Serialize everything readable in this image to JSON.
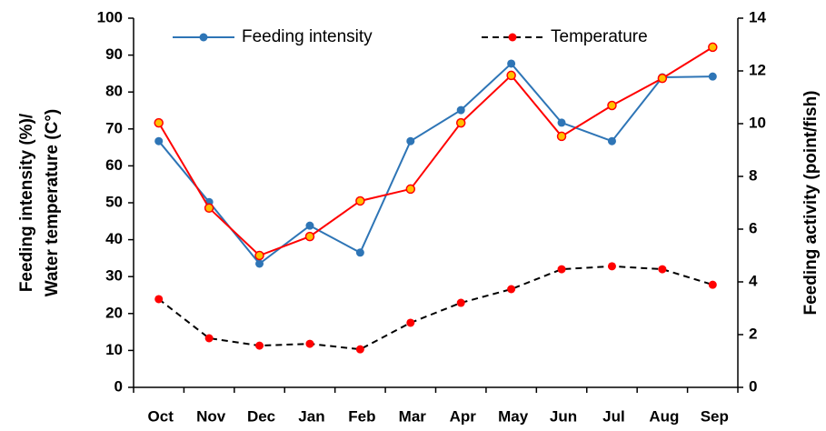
{
  "chart_data": {
    "type": "line",
    "ylabel": [
      "Feeding intensity (%)/",
      "Water temperature (C°)"
    ],
    "y2label": "Feeding activity (point/fish)",
    "categories": [
      "Oct",
      "Nov",
      "Dec",
      "Jan",
      "Feb",
      "Mar",
      "Apr",
      "May",
      "Jun",
      "Jul",
      "Aug",
      "Sep"
    ],
    "series": [
      {
        "name": "Feeding intensity",
        "color": "#2e75b6",
        "marker_color": "#2e75b6",
        "dash": false,
        "values": [
          66.7,
          50.2,
          33.5,
          43.8,
          36.5,
          66.7,
          75.1,
          87.7,
          71.7,
          66.7,
          84,
          84.2
        ]
      },
      {
        "name": "Temperature",
        "color": "#000000",
        "marker_color": "#ff0000",
        "dash": true,
        "values": [
          23.9,
          13.3,
          11.3,
          11.8,
          10.3,
          17.5,
          22.9,
          26.6,
          32,
          32.8,
          32,
          27.8
        ]
      },
      {
        "color": "#ff0000",
        "marker_color": "#ffc000",
        "dash": false,
        "axis": "y2",
        "values": [
          10.03,
          6.8,
          5.0,
          5.72,
          7.07,
          7.52,
          10.03,
          11.83,
          9.52,
          10.69,
          11.72,
          12.9
        ]
      }
    ],
    "ylim": [
      0,
      100
    ],
    "yticks": [
      0,
      10,
      20,
      30,
      40,
      50,
      60,
      70,
      80,
      90,
      100
    ],
    "y2lim": [
      0,
      14
    ],
    "y2ticks": [
      0,
      2,
      4,
      6,
      8,
      10,
      12,
      14
    ],
    "grid": false,
    "legend": "top"
  }
}
